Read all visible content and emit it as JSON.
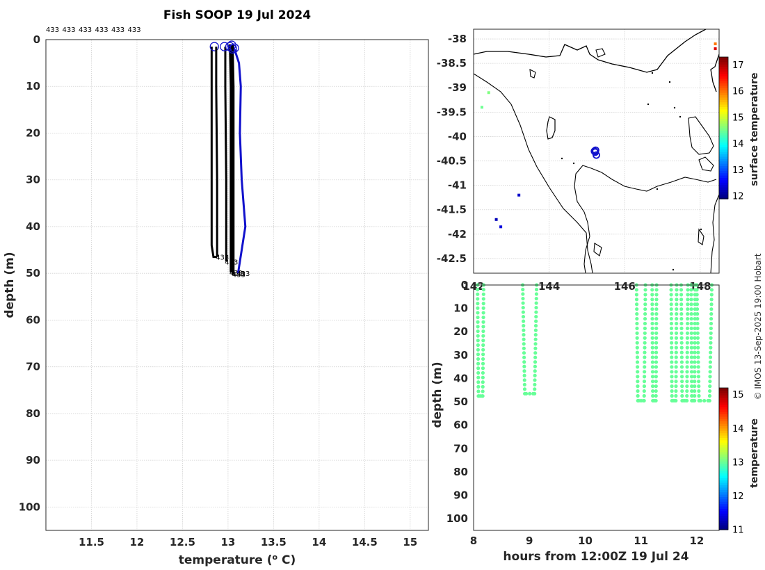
{
  "title": "Fish SOOP 19 Jul 2024",
  "watermark": "© IMOS 13-Sep-2025 19:00 Hobart",
  "chart_data": [
    {
      "id": "profiles",
      "type": "line",
      "xlabel": "temperature (o C)",
      "xlabel_parts": {
        "pre": "temperature (",
        "sup": "o",
        "post": " C)"
      },
      "ylabel": "depth (m)",
      "xlim": [
        11.0,
        15.2
      ],
      "ylim": [
        105,
        0
      ],
      "xticks": [
        "11.5",
        "12",
        "12.5",
        "13",
        "13.5",
        "14",
        "14.5",
        "15"
      ],
      "yticks": [
        "0",
        "10",
        "20",
        "30",
        "40",
        "50",
        "60",
        "70",
        "80",
        "90",
        "100"
      ],
      "grid": true,
      "top_labels": [
        "433",
        "433",
        "433",
        "433",
        "433",
        "433"
      ],
      "series": [
        {
          "color": "#000000",
          "points": [
            [
              12.82,
              1.5
            ],
            [
              12.82,
              44
            ],
            [
              12.84,
              46.5
            ],
            [
              12.88,
              46.5
            ]
          ],
          "end_label": "433",
          "surface_circle": [
            12.85,
            1.5
          ]
        },
        {
          "color": "#000000",
          "points": [
            [
              12.87,
              1.5
            ],
            [
              12.87,
              10
            ],
            [
              12.88,
              30
            ],
            [
              12.88,
              46.5
            ]
          ],
          "end_label": "",
          "surface_circle": null
        },
        {
          "color": "#000000",
          "points": [
            [
              12.97,
              1.5
            ],
            [
              12.97,
              10
            ],
            [
              12.98,
              30
            ],
            [
              12.98,
              47.5
            ]
          ],
          "end_label": "433",
          "surface_circle": [
            12.96,
            1.5
          ]
        },
        {
          "color": "#000000",
          "points": [
            [
              13.02,
              1
            ],
            [
              13.03,
              10
            ],
            [
              13.03,
              30
            ],
            [
              13.03,
              49.8
            ]
          ],
          "end_label": "433",
          "surface_circle": [
            13.02,
            1.5
          ]
        },
        {
          "color": "#000000",
          "points": [
            [
              13.04,
              1
            ],
            [
              13.05,
              10
            ],
            [
              13.05,
              30
            ],
            [
              13.05,
              50
            ]
          ],
          "end_label": "433",
          "surface_circle": [
            13.04,
            1.2
          ]
        },
        {
          "color": "#000000",
          "points": [
            [
              13.05,
              1
            ],
            [
              13.06,
              10
            ],
            [
              13.06,
              30
            ],
            [
              13.06,
              50.2
            ]
          ],
          "end_label": "433",
          "surface_circle": [
            13.05,
            2
          ]
        },
        {
          "color": "#1111cc",
          "points": [
            [
              13.07,
              2
            ],
            [
              13.12,
              5
            ],
            [
              13.14,
              10
            ],
            [
              13.13,
              20
            ],
            [
              13.15,
              30
            ],
            [
              13.19,
              40
            ],
            [
              13.15,
              45
            ],
            [
              13.11,
              50
            ]
          ],
          "end_label": "433",
          "surface_circle": [
            13.07,
            1.8
          ]
        }
      ]
    },
    {
      "id": "map",
      "type": "scatter",
      "xticks": [
        "142",
        "144",
        "146",
        "148"
      ],
      "yticks": [
        "-38",
        "-38.5",
        "-39",
        "-39.5",
        "-40",
        "-40.5",
        "-41",
        "-41.5",
        "-42",
        "-42.5"
      ],
      "xlim": [
        142.0,
        148.5
      ],
      "ylim": [
        -42.8,
        -37.8
      ],
      "grid": true,
      "colorbar": {
        "label": "surface temperature",
        "ticks": [
          "12",
          "13",
          "14",
          "15",
          "16",
          "17"
        ],
        "range": [
          11.9,
          17.3
        ]
      },
      "track_points": [
        [
          145.2,
          -40.3
        ],
        [
          145.22,
          -40.32
        ],
        [
          145.25,
          -40.38
        ],
        [
          145.23,
          -40.28
        ]
      ],
      "coloured_cells": [
        {
          "lon": 142.4,
          "lat": -39.1,
          "t": 14.6
        },
        {
          "lon": 142.22,
          "lat": -39.4,
          "t": 14.5
        },
        {
          "lon": 143.2,
          "lat": -41.2,
          "t": 12.3
        },
        {
          "lon": 142.6,
          "lat": -41.7,
          "t": 12.2
        },
        {
          "lon": 142.72,
          "lat": -41.85,
          "t": 12.4
        },
        {
          "lon": 148.4,
          "lat": -38.1,
          "t": 16.0
        },
        {
          "lon": 148.4,
          "lat": -38.2,
          "t": 16.8
        }
      ]
    },
    {
      "id": "timeseries",
      "type": "scatter",
      "xlabel": "hours from 12:00Z 19 Jul 24",
      "ylabel": "depth (m)",
      "xlim": [
        8,
        12.4
      ],
      "ylim": [
        105,
        0
      ],
      "xticks": [
        "8",
        "9",
        "10",
        "11",
        "12"
      ],
      "yticks": [
        "0",
        "10",
        "20",
        "30",
        "40",
        "50",
        "60",
        "70",
        "80",
        "90",
        "100"
      ],
      "grid": false,
      "colorbar": {
        "label": "temperature",
        "ticks": [
          "11",
          "12",
          "13",
          "14",
          "15"
        ],
        "range": [
          11,
          15.2
        ]
      },
      "casts": [
        {
          "x_down": 8.07,
          "x_up": 8.18,
          "max_depth": 47.5
        },
        {
          "x_down": 8.88,
          "x_up": 9.13,
          "max_depth": 46.5
        },
        {
          "x_down": 10.92,
          "x_up": 11.08,
          "max_depth": 49.5
        },
        {
          "x_down": 11.2,
          "x_up": 11.28,
          "max_depth": 49.5
        },
        {
          "x_down": 11.54,
          "x_up": 11.64,
          "max_depth": 49.5
        },
        {
          "x_down": 11.72,
          "x_up": 11.84,
          "max_depth": 49.5
        },
        {
          "x_down": 11.9,
          "x_up": 11.97,
          "max_depth": 49.5
        },
        {
          "x_down": 12.0,
          "x_up": 12.27,
          "max_depth": 49.5
        }
      ],
      "point_temperature": 13.0
    }
  ]
}
